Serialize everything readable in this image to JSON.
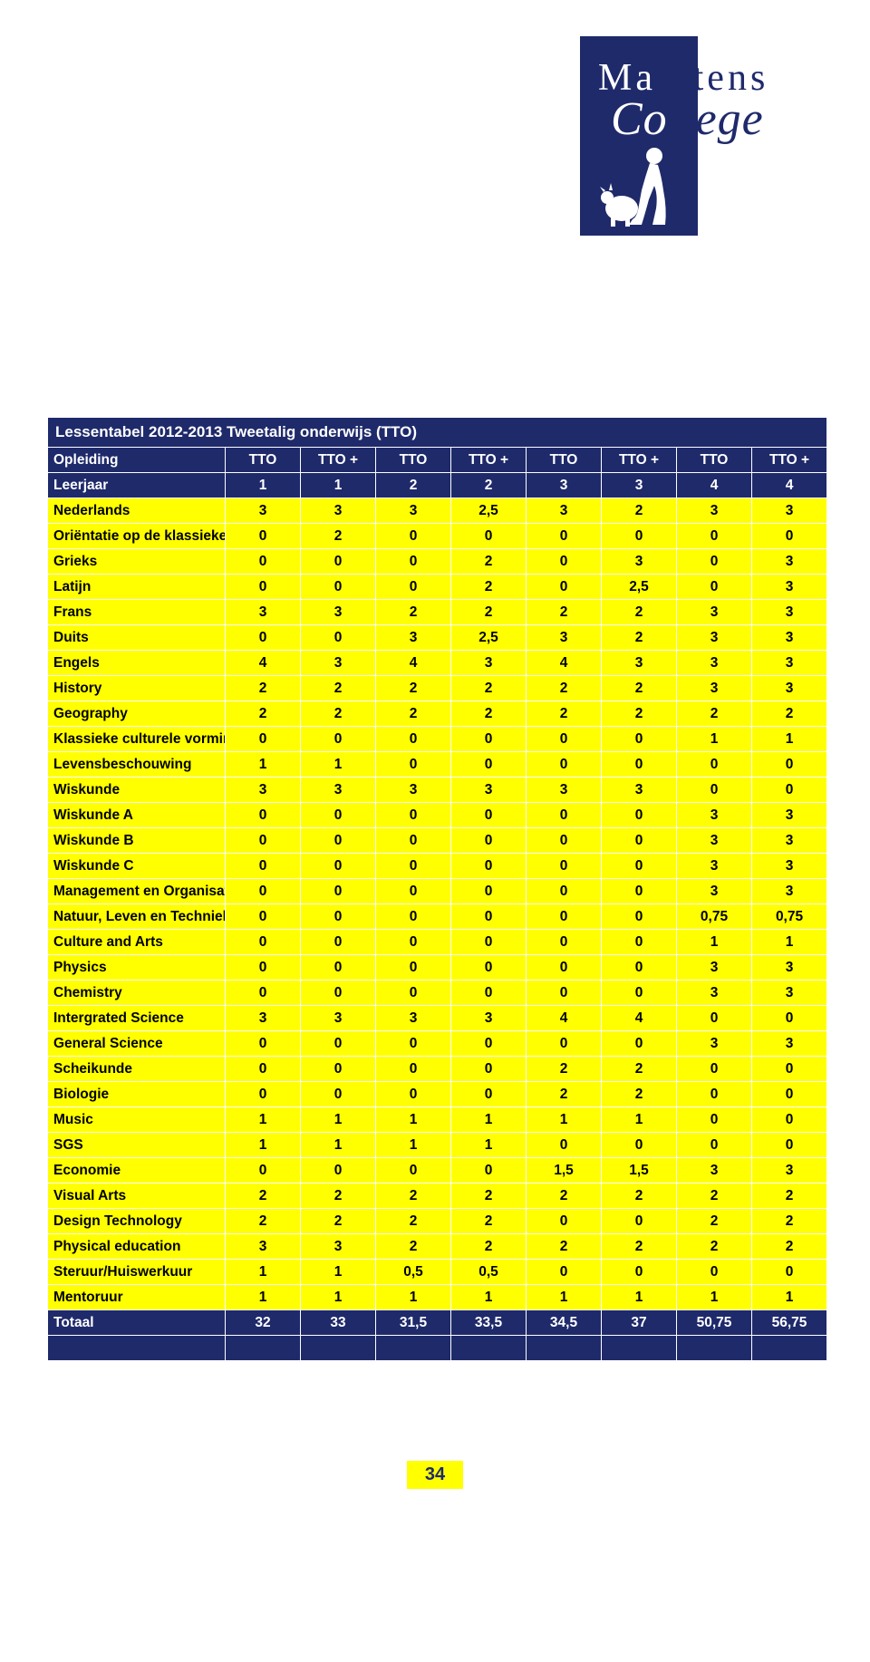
{
  "logo": {
    "line1": "Maartens",
    "line2": "College"
  },
  "title": "Lessentabel 2012-2013 Tweetalig onderwijs (TTO)",
  "label_col_header_opleiding": "Opleiding",
  "label_col_header_leerjaar": "Leerjaar",
  "opleiding_headers": [
    "TTO",
    "TTO +",
    "TTO",
    "TTO +",
    "TTO",
    "TTO +",
    "TTO",
    "TTO +"
  ],
  "leerjaar_headers": [
    "1",
    "1",
    "2",
    "2",
    "3",
    "3",
    "4",
    "4"
  ],
  "rows": [
    {
      "label": "Nederlands",
      "v": [
        "3",
        "3",
        "3",
        "2,5",
        "3",
        "2",
        "3",
        "3"
      ]
    },
    {
      "label": "Oriëntatie op de klassieken",
      "v": [
        "0",
        "2",
        "0",
        "0",
        "0",
        "0",
        "0",
        "0"
      ]
    },
    {
      "label": "Grieks",
      "v": [
        "0",
        "0",
        "0",
        "2",
        "0",
        "3",
        "0",
        "3"
      ]
    },
    {
      "label": "Latijn",
      "v": [
        "0",
        "0",
        "0",
        "2",
        "0",
        "2,5",
        "0",
        "3"
      ]
    },
    {
      "label": "Frans",
      "v": [
        "3",
        "3",
        "2",
        "2",
        "2",
        "2",
        "3",
        "3"
      ]
    },
    {
      "label": "Duits",
      "v": [
        "0",
        "0",
        "3",
        "2,5",
        "3",
        "2",
        "3",
        "3"
      ]
    },
    {
      "label": "Engels",
      "v": [
        "4",
        "3",
        "4",
        "3",
        "4",
        "3",
        "3",
        "3"
      ]
    },
    {
      "label": "History",
      "v": [
        "2",
        "2",
        "2",
        "2",
        "2",
        "2",
        "3",
        "3"
      ]
    },
    {
      "label": "Geography",
      "v": [
        "2",
        "2",
        "2",
        "2",
        "2",
        "2",
        "2",
        "2"
      ]
    },
    {
      "label": "Klassieke culturele vorming",
      "v": [
        "0",
        "0",
        "0",
        "0",
        "0",
        "0",
        "1",
        "1"
      ]
    },
    {
      "label": "Levensbeschouwing",
      "v": [
        "1",
        "1",
        "0",
        "0",
        "0",
        "0",
        "0",
        "0"
      ]
    },
    {
      "label": "Wiskunde",
      "v": [
        "3",
        "3",
        "3",
        "3",
        "3",
        "3",
        "0",
        "0"
      ]
    },
    {
      "label": "Wiskunde A",
      "v": [
        "0",
        "0",
        "0",
        "0",
        "0",
        "0",
        "3",
        "3"
      ]
    },
    {
      "label": "Wiskunde B",
      "v": [
        "0",
        "0",
        "0",
        "0",
        "0",
        "0",
        "3",
        "3"
      ]
    },
    {
      "label": "Wiskunde C",
      "v": [
        "0",
        "0",
        "0",
        "0",
        "0",
        "0",
        "3",
        "3"
      ]
    },
    {
      "label": "Management en Organisatie",
      "v": [
        "0",
        "0",
        "0",
        "0",
        "0",
        "0",
        "3",
        "3"
      ]
    },
    {
      "label": "Natuur, Leven en Techniek",
      "v": [
        "0",
        "0",
        "0",
        "0",
        "0",
        "0",
        "0,75",
        "0,75"
      ]
    },
    {
      "label": "Culture and Arts",
      "v": [
        "0",
        "0",
        "0",
        "0",
        "0",
        "0",
        "1",
        "1"
      ]
    },
    {
      "label": "Physics",
      "v": [
        "0",
        "0",
        "0",
        "0",
        "0",
        "0",
        "3",
        "3"
      ]
    },
    {
      "label": "Chemistry",
      "v": [
        "0",
        "0",
        "0",
        "0",
        "0",
        "0",
        "3",
        "3"
      ]
    },
    {
      "label": "Intergrated Science",
      "v": [
        "3",
        "3",
        "3",
        "3",
        "4",
        "4",
        "0",
        "0"
      ]
    },
    {
      "label": "General Science",
      "v": [
        "0",
        "0",
        "0",
        "0",
        "0",
        "0",
        "3",
        "3"
      ]
    },
    {
      "label": "Scheikunde",
      "v": [
        "0",
        "0",
        "0",
        "0",
        "2",
        "2",
        "0",
        "0"
      ]
    },
    {
      "label": "Biologie",
      "v": [
        "0",
        "0",
        "0",
        "0",
        "2",
        "2",
        "0",
        "0"
      ]
    },
    {
      "label": "Music",
      "v": [
        "1",
        "1",
        "1",
        "1",
        "1",
        "1",
        "0",
        "0"
      ]
    },
    {
      "label": "SGS",
      "v": [
        "1",
        "1",
        "1",
        "1",
        "0",
        "0",
        "0",
        "0"
      ]
    },
    {
      "label": "Economie",
      "v": [
        "0",
        "0",
        "0",
        "0",
        "1,5",
        "1,5",
        "3",
        "3"
      ]
    },
    {
      "label": "Visual Arts",
      "v": [
        "2",
        "2",
        "2",
        "2",
        "2",
        "2",
        "2",
        "2"
      ]
    },
    {
      "label": "Design Technology",
      "v": [
        "2",
        "2",
        "2",
        "2",
        "0",
        "0",
        "2",
        "2"
      ]
    },
    {
      "label": "Physical education",
      "v": [
        "3",
        "3",
        "2",
        "2",
        "2",
        "2",
        "2",
        "2"
      ]
    },
    {
      "label": "Steruur/Huiswerkuur",
      "v": [
        "1",
        "1",
        "0,5",
        "0,5",
        "0",
        "0",
        "0",
        "0"
      ]
    },
    {
      "label": "Mentoruur",
      "v": [
        "1",
        "1",
        "1",
        "1",
        "1",
        "1",
        "1",
        "1"
      ]
    }
  ],
  "total": {
    "label": "Totaal",
    "v": [
      "32",
      "33",
      "31,5",
      "33,5",
      "34,5",
      "37",
      "50,75",
      "56,75"
    ]
  },
  "page_number": "34",
  "colors": {
    "dark_blue": "#1f2a6b",
    "yellow": "#ffff00",
    "white": "#ffffff",
    "black": "#000000"
  },
  "fonts": {
    "body": "Arial, Helvetica, sans-serif",
    "logo": "Georgia, Times New Roman, serif"
  }
}
